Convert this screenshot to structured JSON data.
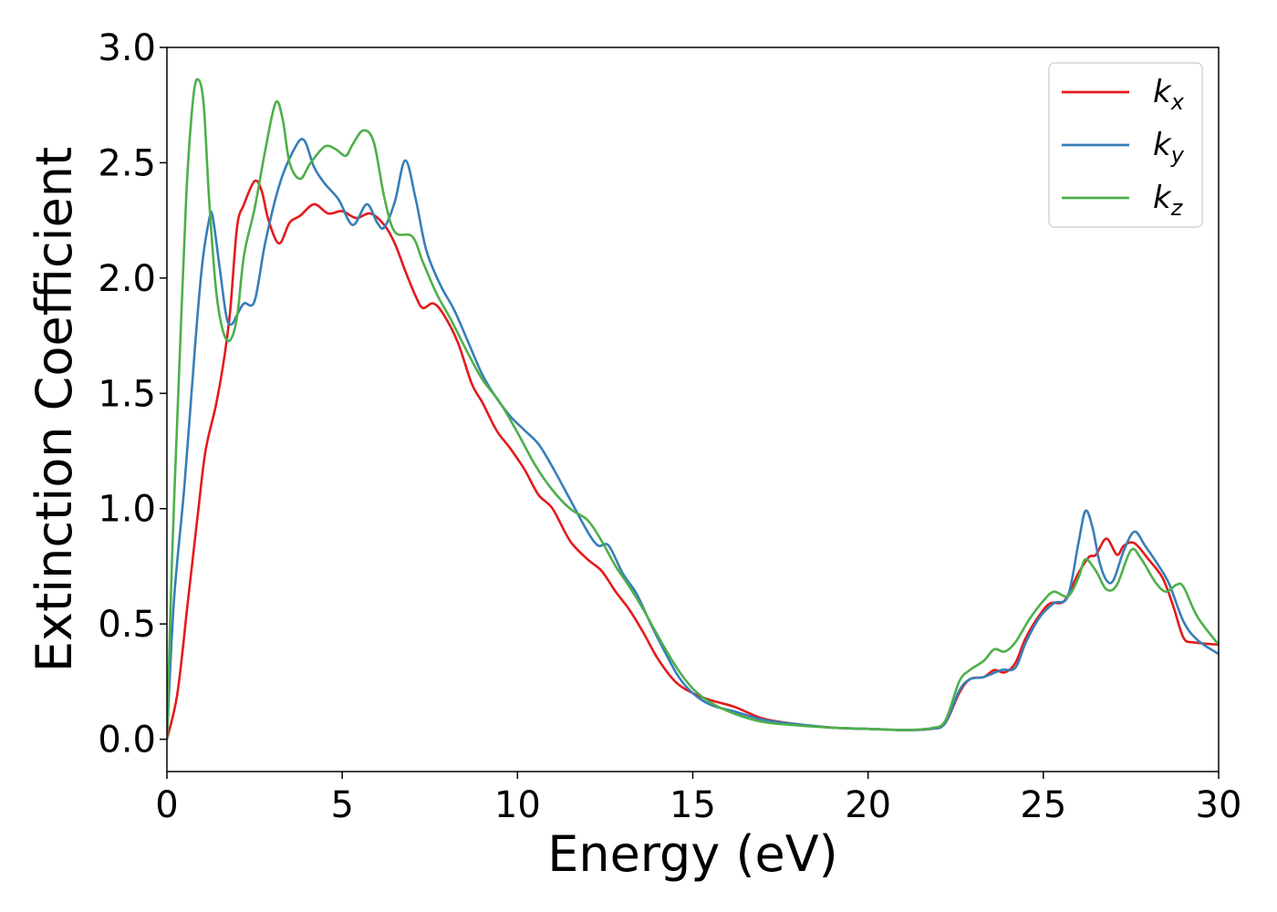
{
  "chart_data": {
    "type": "line",
    "title": "",
    "xlabel": "Energy (eV)",
    "ylabel": "Extinction Coefficient",
    "xlim": [
      0,
      30
    ],
    "ylim": [
      -0.14,
      3.0
    ],
    "xticks": [
      0,
      5,
      10,
      15,
      20,
      25,
      30
    ],
    "xtick_labels": [
      "0",
      "5",
      "10",
      "15",
      "20",
      "25",
      "30"
    ],
    "yticks": [
      0.0,
      0.5,
      1.0,
      1.5,
      2.0,
      2.5,
      3.0
    ],
    "ytick_labels": [
      "0.0",
      "0.5",
      "1.0",
      "1.5",
      "2.0",
      "2.5",
      "3.0"
    ],
    "grid": false,
    "legend_position": "top-right",
    "series": [
      {
        "name": "k",
        "subscript": "x",
        "color": "#e41a1c",
        "points": [
          [
            0,
            0
          ],
          [
            0.3,
            0.2
          ],
          [
            0.6,
            0.6
          ],
          [
            0.9,
            1.0
          ],
          [
            1.1,
            1.25
          ],
          [
            1.4,
            1.45
          ],
          [
            1.6,
            1.62
          ],
          [
            1.8,
            1.85
          ],
          [
            2.0,
            2.22
          ],
          [
            2.2,
            2.32
          ],
          [
            2.5,
            2.42
          ],
          [
            2.7,
            2.38
          ],
          [
            2.9,
            2.25
          ],
          [
            3.2,
            2.15
          ],
          [
            3.5,
            2.24
          ],
          [
            3.8,
            2.27
          ],
          [
            4.2,
            2.32
          ],
          [
            4.6,
            2.28
          ],
          [
            5.0,
            2.29
          ],
          [
            5.4,
            2.26
          ],
          [
            5.8,
            2.28
          ],
          [
            6.2,
            2.23
          ],
          [
            6.5,
            2.15
          ],
          [
            6.8,
            2.03
          ],
          [
            7.1,
            1.92
          ],
          [
            7.3,
            1.87
          ],
          [
            7.6,
            1.89
          ],
          [
            7.9,
            1.84
          ],
          [
            8.3,
            1.72
          ],
          [
            8.7,
            1.54
          ],
          [
            9.0,
            1.46
          ],
          [
            9.4,
            1.34
          ],
          [
            9.8,
            1.26
          ],
          [
            10.2,
            1.17
          ],
          [
            10.6,
            1.06
          ],
          [
            11.0,
            1.0
          ],
          [
            11.5,
            0.86
          ],
          [
            12.0,
            0.78
          ],
          [
            12.4,
            0.73
          ],
          [
            12.8,
            0.64
          ],
          [
            13.2,
            0.56
          ],
          [
            13.6,
            0.46
          ],
          [
            14.0,
            0.35
          ],
          [
            14.5,
            0.25
          ],
          [
            15.0,
            0.2
          ],
          [
            15.5,
            0.17
          ],
          [
            16.2,
            0.14
          ],
          [
            17.0,
            0.09
          ],
          [
            18.0,
            0.065
          ],
          [
            19.0,
            0.05
          ],
          [
            20.0,
            0.045
          ],
          [
            21.0,
            0.04
          ],
          [
            21.8,
            0.045
          ],
          [
            22.2,
            0.07
          ],
          [
            22.6,
            0.2
          ],
          [
            22.9,
            0.26
          ],
          [
            23.3,
            0.27
          ],
          [
            23.6,
            0.3
          ],
          [
            23.9,
            0.29
          ],
          [
            24.2,
            0.33
          ],
          [
            24.5,
            0.44
          ],
          [
            24.9,
            0.54
          ],
          [
            25.2,
            0.59
          ],
          [
            25.6,
            0.6
          ],
          [
            26.0,
            0.72
          ],
          [
            26.3,
            0.79
          ],
          [
            26.5,
            0.8
          ],
          [
            26.8,
            0.87
          ],
          [
            27.1,
            0.8
          ],
          [
            27.3,
            0.84
          ],
          [
            27.6,
            0.85
          ],
          [
            28.0,
            0.78
          ],
          [
            28.4,
            0.7
          ],
          [
            28.7,
            0.58
          ],
          [
            29.0,
            0.44
          ],
          [
            29.3,
            0.42
          ],
          [
            30.0,
            0.41
          ]
        ]
      },
      {
        "name": "k",
        "subscript": "y",
        "color": "#377eb8",
        "points": [
          [
            0,
            0
          ],
          [
            0.2,
            0.6
          ],
          [
            0.5,
            1.1
          ],
          [
            0.8,
            1.7
          ],
          [
            1.0,
            2.05
          ],
          [
            1.2,
            2.25
          ],
          [
            1.3,
            2.27
          ],
          [
            1.5,
            2.05
          ],
          [
            1.7,
            1.83
          ],
          [
            1.85,
            1.8
          ],
          [
            2.0,
            1.84
          ],
          [
            2.2,
            1.89
          ],
          [
            2.5,
            1.9
          ],
          [
            2.8,
            2.15
          ],
          [
            3.2,
            2.4
          ],
          [
            3.6,
            2.55
          ],
          [
            3.9,
            2.6
          ],
          [
            4.2,
            2.48
          ],
          [
            4.5,
            2.41
          ],
          [
            4.9,
            2.34
          ],
          [
            5.3,
            2.23
          ],
          [
            5.7,
            2.32
          ],
          [
            6.0,
            2.24
          ],
          [
            6.2,
            2.22
          ],
          [
            6.5,
            2.33
          ],
          [
            6.8,
            2.51
          ],
          [
            7.1,
            2.34
          ],
          [
            7.4,
            2.12
          ],
          [
            7.8,
            1.97
          ],
          [
            8.2,
            1.86
          ],
          [
            8.6,
            1.72
          ],
          [
            9.0,
            1.58
          ],
          [
            9.4,
            1.48
          ],
          [
            9.8,
            1.4
          ],
          [
            10.2,
            1.34
          ],
          [
            10.6,
            1.28
          ],
          [
            11.0,
            1.18
          ],
          [
            11.5,
            1.04
          ],
          [
            12.0,
            0.9
          ],
          [
            12.3,
            0.84
          ],
          [
            12.6,
            0.84
          ],
          [
            13.0,
            0.72
          ],
          [
            13.4,
            0.63
          ],
          [
            13.8,
            0.5
          ],
          [
            14.2,
            0.38
          ],
          [
            14.6,
            0.27
          ],
          [
            15.0,
            0.2
          ],
          [
            15.5,
            0.15
          ],
          [
            16.2,
            0.12
          ],
          [
            17.0,
            0.085
          ],
          [
            18.0,
            0.065
          ],
          [
            19.0,
            0.05
          ],
          [
            20.0,
            0.045
          ],
          [
            21.0,
            0.04
          ],
          [
            21.8,
            0.045
          ],
          [
            22.2,
            0.07
          ],
          [
            22.6,
            0.21
          ],
          [
            22.9,
            0.26
          ],
          [
            23.3,
            0.27
          ],
          [
            23.8,
            0.3
          ],
          [
            24.2,
            0.31
          ],
          [
            24.5,
            0.42
          ],
          [
            24.9,
            0.53
          ],
          [
            25.3,
            0.59
          ],
          [
            25.7,
            0.62
          ],
          [
            26.0,
            0.85
          ],
          [
            26.2,
            0.99
          ],
          [
            26.4,
            0.92
          ],
          [
            26.6,
            0.77
          ],
          [
            26.8,
            0.69
          ],
          [
            27.0,
            0.69
          ],
          [
            27.3,
            0.82
          ],
          [
            27.6,
            0.9
          ],
          [
            27.9,
            0.84
          ],
          [
            28.3,
            0.75
          ],
          [
            28.6,
            0.67
          ],
          [
            29.0,
            0.51
          ],
          [
            29.4,
            0.43
          ],
          [
            30.0,
            0.37
          ]
        ]
      },
      {
        "name": "k",
        "subscript": "z",
        "color": "#4daf4a",
        "points": [
          [
            0,
            0
          ],
          [
            0.15,
            0.8
          ],
          [
            0.35,
            1.6
          ],
          [
            0.55,
            2.35
          ],
          [
            0.75,
            2.78
          ],
          [
            0.9,
            2.86
          ],
          [
            1.05,
            2.75
          ],
          [
            1.2,
            2.35
          ],
          [
            1.4,
            1.95
          ],
          [
            1.6,
            1.77
          ],
          [
            1.8,
            1.73
          ],
          [
            2.0,
            1.83
          ],
          [
            2.2,
            2.1
          ],
          [
            2.5,
            2.3
          ],
          [
            2.8,
            2.55
          ],
          [
            3.1,
            2.76
          ],
          [
            3.3,
            2.69
          ],
          [
            3.5,
            2.5
          ],
          [
            3.8,
            2.43
          ],
          [
            4.1,
            2.5
          ],
          [
            4.5,
            2.57
          ],
          [
            4.8,
            2.56
          ],
          [
            5.1,
            2.53
          ],
          [
            5.3,
            2.58
          ],
          [
            5.6,
            2.64
          ],
          [
            5.9,
            2.59
          ],
          [
            6.2,
            2.35
          ],
          [
            6.5,
            2.2
          ],
          [
            7.0,
            2.18
          ],
          [
            7.3,
            2.07
          ],
          [
            7.7,
            1.93
          ],
          [
            8.1,
            1.82
          ],
          [
            8.6,
            1.67
          ],
          [
            9.0,
            1.56
          ],
          [
            9.5,
            1.46
          ],
          [
            10.0,
            1.33
          ],
          [
            10.5,
            1.19
          ],
          [
            11.0,
            1.08
          ],
          [
            11.5,
            1.0
          ],
          [
            12.0,
            0.95
          ],
          [
            12.4,
            0.86
          ],
          [
            12.8,
            0.75
          ],
          [
            13.2,
            0.66
          ],
          [
            13.6,
            0.56
          ],
          [
            14.0,
            0.45
          ],
          [
            14.5,
            0.32
          ],
          [
            15.0,
            0.22
          ],
          [
            15.5,
            0.16
          ],
          [
            16.2,
            0.11
          ],
          [
            17.0,
            0.075
          ],
          [
            18.0,
            0.06
          ],
          [
            19.0,
            0.05
          ],
          [
            20.0,
            0.045
          ],
          [
            21.0,
            0.04
          ],
          [
            21.8,
            0.048
          ],
          [
            22.2,
            0.08
          ],
          [
            22.6,
            0.25
          ],
          [
            22.9,
            0.3
          ],
          [
            23.3,
            0.34
          ],
          [
            23.6,
            0.39
          ],
          [
            23.9,
            0.38
          ],
          [
            24.2,
            0.42
          ],
          [
            24.6,
            0.52
          ],
          [
            25.0,
            0.6
          ],
          [
            25.3,
            0.64
          ],
          [
            25.7,
            0.62
          ],
          [
            26.0,
            0.7
          ],
          [
            26.2,
            0.78
          ],
          [
            26.5,
            0.73
          ],
          [
            26.8,
            0.65
          ],
          [
            27.1,
            0.67
          ],
          [
            27.5,
            0.82
          ],
          [
            27.8,
            0.78
          ],
          [
            28.2,
            0.68
          ],
          [
            28.5,
            0.64
          ],
          [
            28.8,
            0.67
          ],
          [
            29.0,
            0.66
          ],
          [
            29.4,
            0.53
          ],
          [
            30.0,
            0.41
          ]
        ]
      }
    ]
  }
}
